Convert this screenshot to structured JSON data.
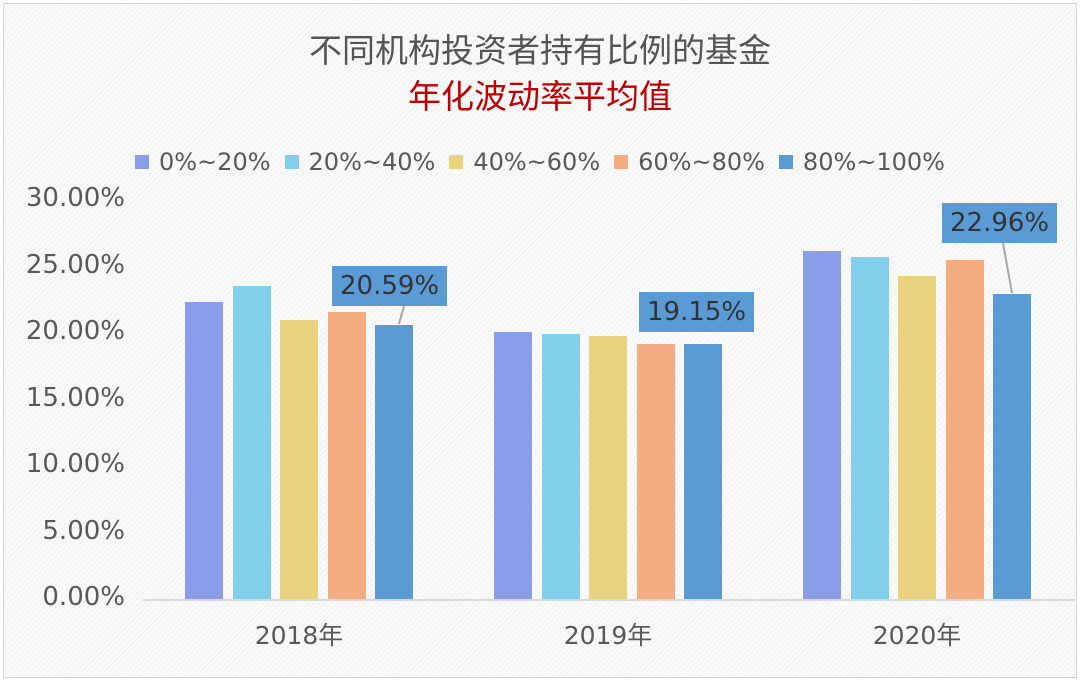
{
  "title": "不同机构投资者持有比例的基金",
  "subtitle": "年化波动率平均值",
  "colors": {
    "title": "#555555",
    "subtitle": "#c00000",
    "series": [
      "#8a9de9",
      "#82cfec",
      "#e9d27f",
      "#f3ad80",
      "#5b9bd5"
    ]
  },
  "legend": [
    {
      "label": "0%~20%",
      "color": "#8a9de9"
    },
    {
      "label": "20%~40%",
      "color": "#82cfec"
    },
    {
      "label": "40%~60%",
      "color": "#e9d27f"
    },
    {
      "label": "60%~80%",
      "color": "#f3ad80"
    },
    {
      "label": "80%~100%",
      "color": "#5b9bd5"
    }
  ],
  "y_ticks": [
    "30.00%",
    "25.00%",
    "20.00%",
    "15.00%",
    "10.00%",
    "5.00%",
    "0.00%"
  ],
  "x_labels": [
    "2018年",
    "2019年",
    "2020年"
  ],
  "callouts": [
    "20.59%",
    "19.15%",
    "22.96%"
  ],
  "chart_data": {
    "type": "bar",
    "title": "不同机构投资者持有比例的基金 年化波动率平均值",
    "categories": [
      "2018年",
      "2019年",
      "2020年"
    ],
    "series": [
      {
        "name": "0%~20%",
        "values": [
          22.3,
          20.1,
          26.2
        ]
      },
      {
        "name": "20%~40%",
        "values": [
          23.5,
          19.9,
          25.7
        ]
      },
      {
        "name": "40%~60%",
        "values": [
          21.0,
          19.8,
          24.3
        ]
      },
      {
        "name": "60%~80%",
        "values": [
          21.6,
          19.2,
          25.5
        ]
      },
      {
        "name": "80%~100%",
        "values": [
          20.59,
          19.15,
          22.96
        ]
      }
    ],
    "data_labels": {
      "80%~100%": [
        "20.59%",
        "19.15%",
        "22.96%"
      ]
    },
    "xlabel": "",
    "ylabel": "",
    "ylim": [
      0,
      30
    ],
    "y_tick_format": "0.00%",
    "legend_position": "top",
    "grid": false
  }
}
